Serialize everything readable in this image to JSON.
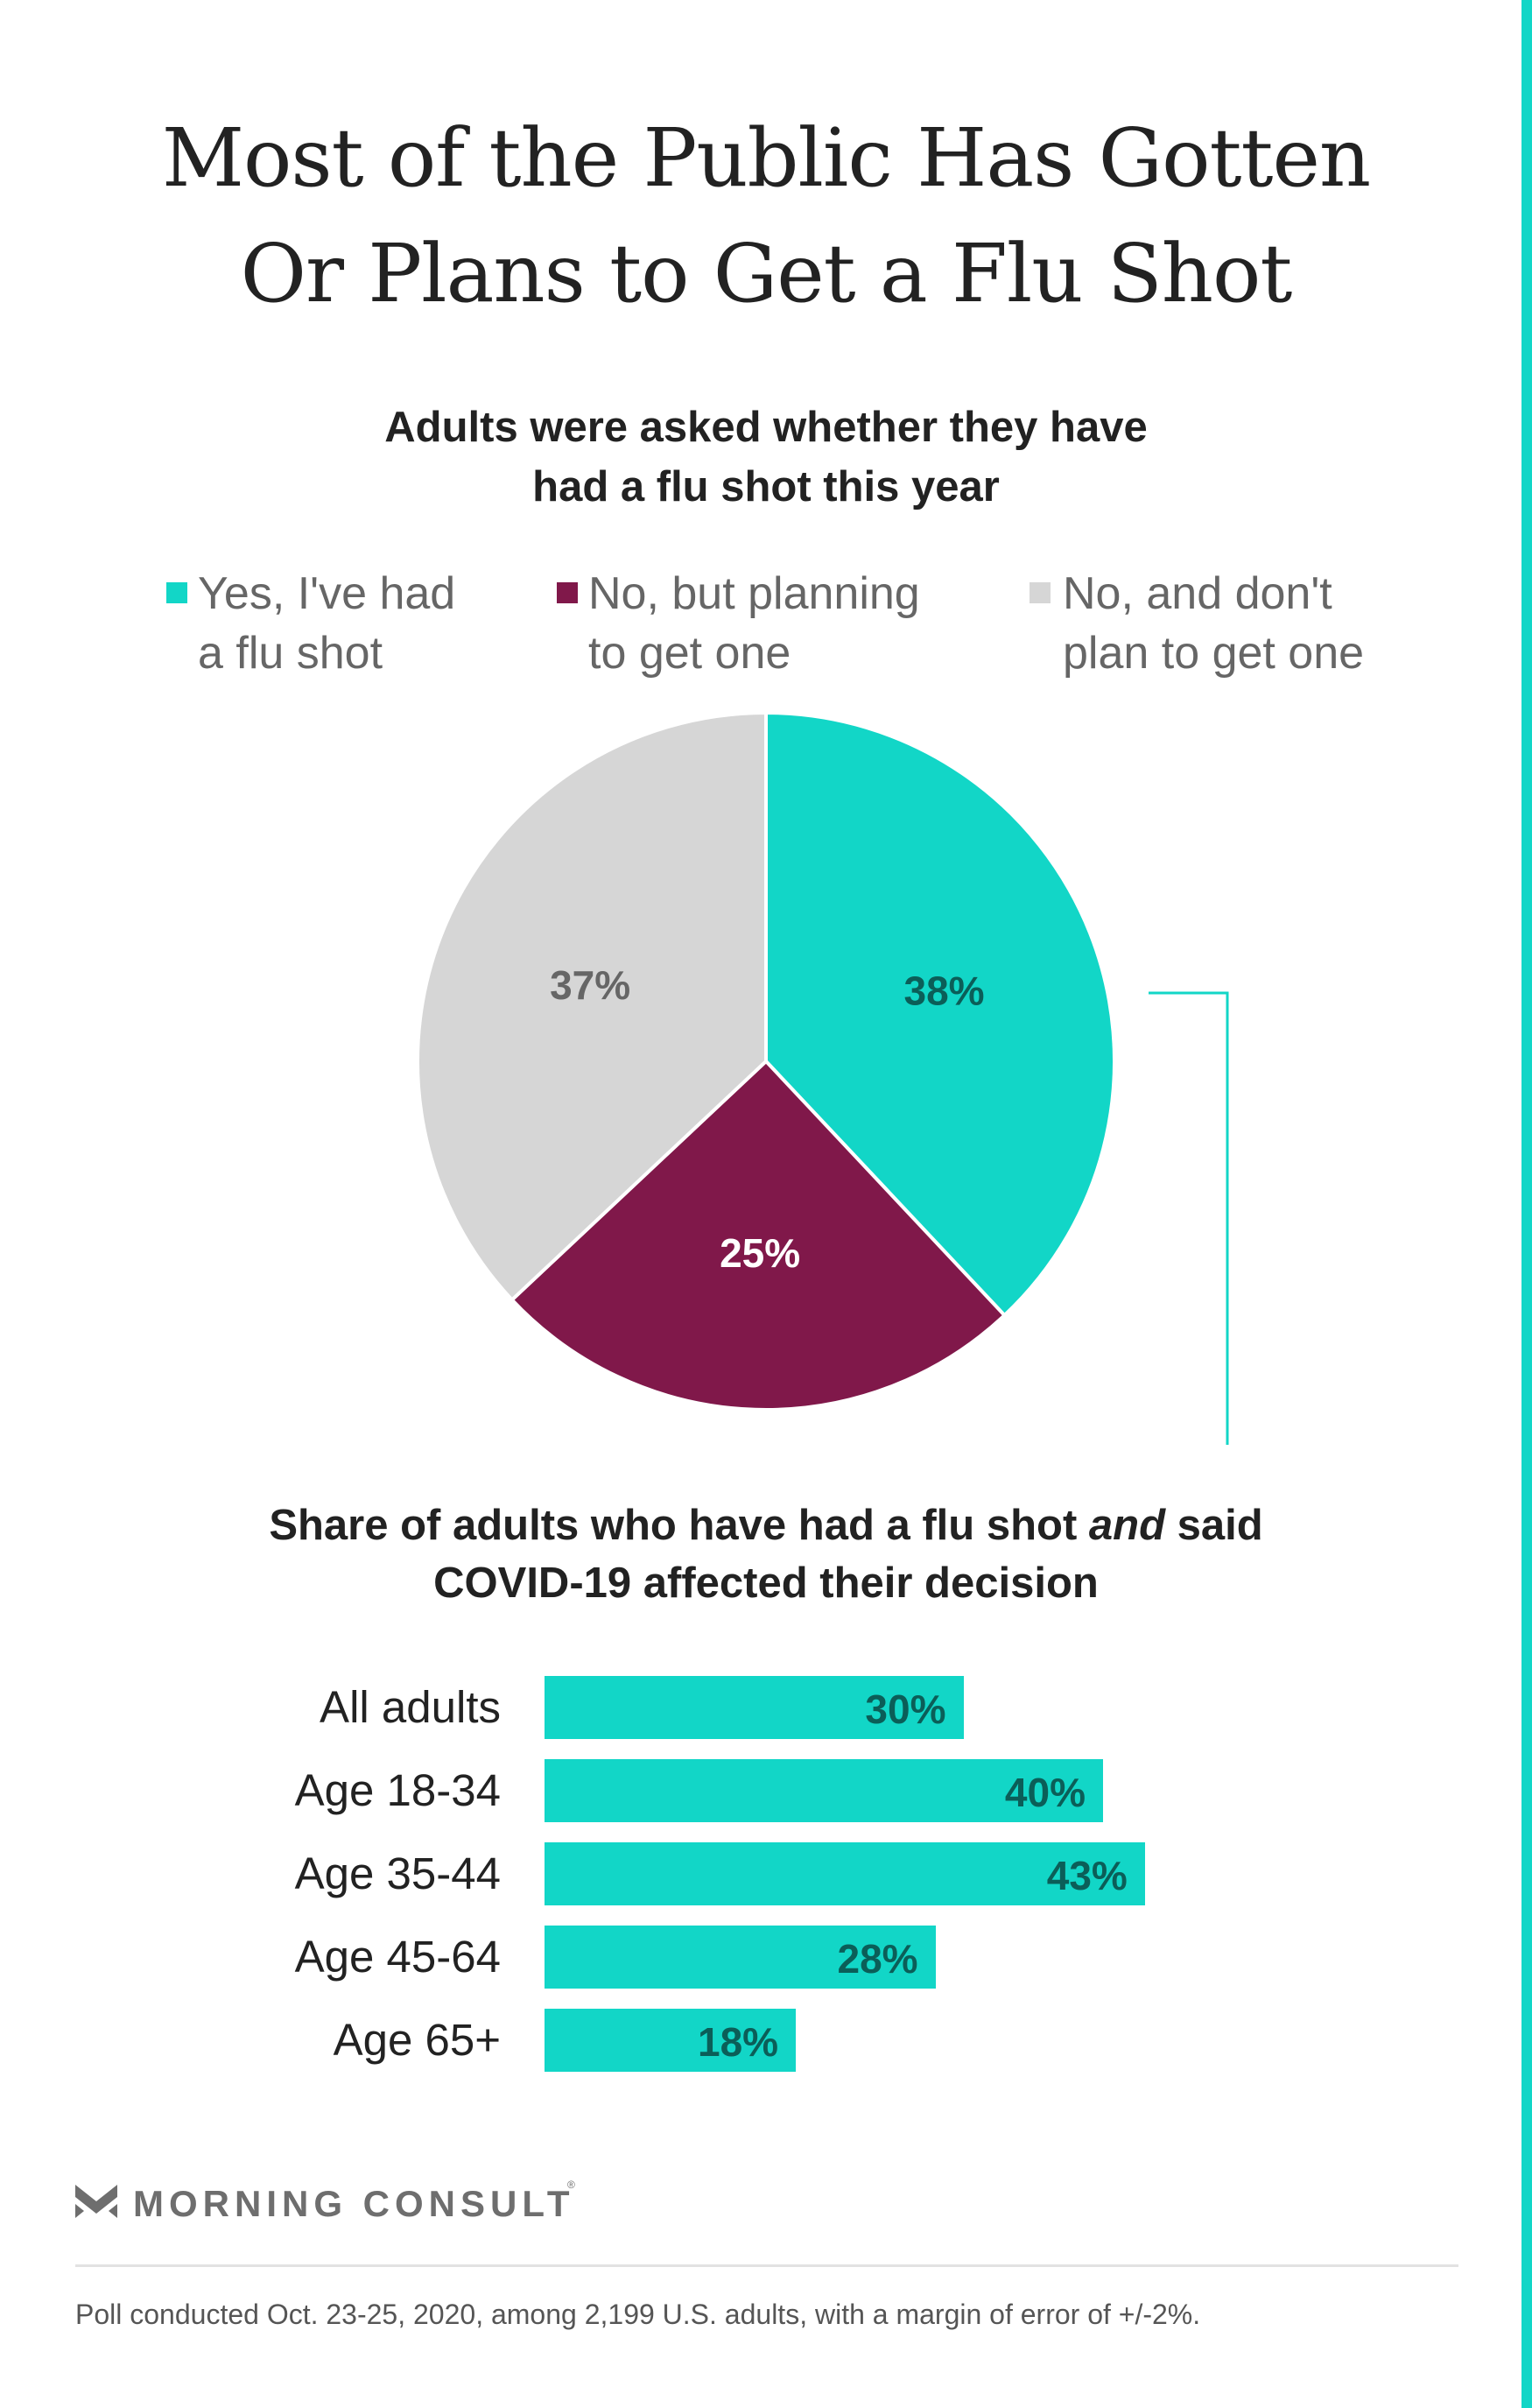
{
  "title_lines": [
    "Most of the Public Has Gotten",
    "Or Plans to Get a Flu Shot"
  ],
  "pie_subtitle_lines": [
    "Adults were asked whether they have",
    "had a flu shot this year"
  ],
  "legend": [
    {
      "lines": [
        "Yes, I've had",
        "a flu shot"
      ],
      "color": "#12d6c7"
    },
    {
      "lines": [
        "No, but planning",
        "to get one"
      ],
      "color": "#80184a"
    },
    {
      "lines": [
        "No, and don't",
        "plan to get one"
      ],
      "color": "#d6d6d6"
    }
  ],
  "bar_subtitle": {
    "line1_before": "Share of adults who have had a flu shot ",
    "line1_italic": "and",
    "line1_after": " said",
    "line2": "COVID-19 affected their decision"
  },
  "footer": {
    "brand": "MORNING CONSULT",
    "registered": "®",
    "source": "Poll conducted Oct. 23-25, 2020, among 2,199 U.S. adults, with a margin of error of +/-2%."
  },
  "colors": {
    "teal": "#12d6c7",
    "maroon": "#80184a",
    "gray": "#d6d6d6",
    "teal_label": "#0b5e58",
    "gray_label": "#666666"
  },
  "chart_data": [
    {
      "type": "pie",
      "categories": [
        "Yes, I've had a flu shot",
        "No, but planning to get one",
        "No, and don't plan to get one"
      ],
      "values": [
        38,
        25,
        37
      ],
      "value_labels": [
        "38%",
        "25%",
        "37%"
      ],
      "unit": "%",
      "start": "12 o'clock",
      "direction": "clockwise"
    },
    {
      "type": "bar",
      "orientation": "horizontal",
      "categories": [
        "All adults",
        "Age 18-34",
        "Age 35-44",
        "Age 45-64",
        "Age 65+"
      ],
      "values": [
        30,
        40,
        43,
        28,
        18
      ],
      "value_labels": [
        "30%",
        "40%",
        "43%",
        "28%",
        "18%"
      ],
      "unit": "%",
      "xlim": [
        0,
        100
      ]
    }
  ]
}
